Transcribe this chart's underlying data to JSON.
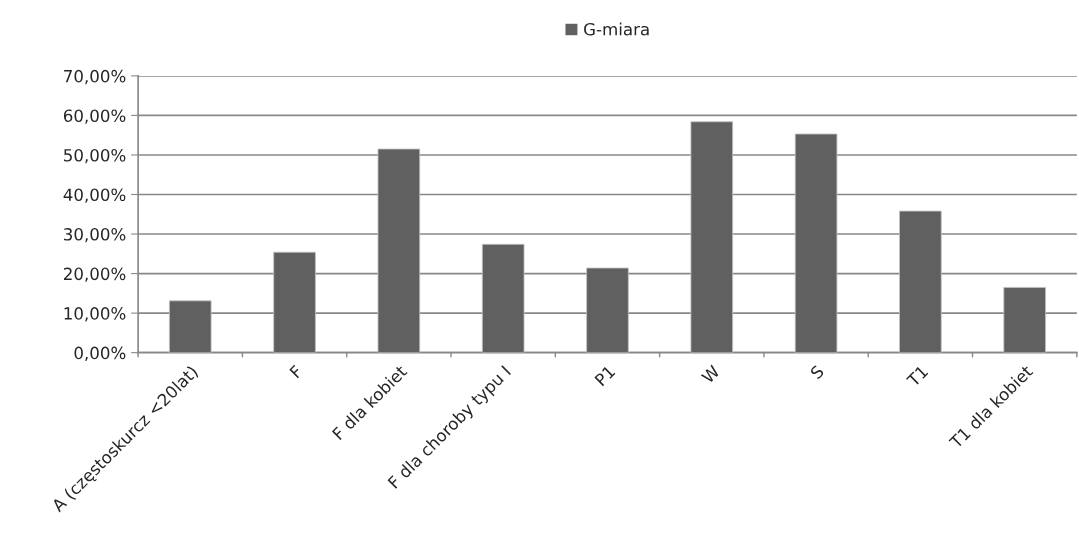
{
  "chart_data": {
    "type": "bar",
    "categories": [
      "A (częstoskurcz <20lat)",
      "F",
      "F dla kobiet",
      "F dla choroby typu I",
      "P1",
      "W",
      "S",
      "T1",
      "T1 dla kobiet"
    ],
    "series": [
      {
        "name": "G-miara",
        "color": "#606060",
        "values": [
          13.1,
          25.4,
          51.5,
          27.4,
          21.4,
          58.4,
          55.3,
          35.8,
          16.5
        ]
      }
    ],
    "ylim": [
      0,
      70
    ],
    "yticks": [
      {
        "value": 0,
        "label": "0,00%"
      },
      {
        "value": 10,
        "label": "10,00%"
      },
      {
        "value": 20,
        "label": "20,00%"
      },
      {
        "value": 30,
        "label": "30,00%"
      },
      {
        "value": 40,
        "label": "40,00%"
      },
      {
        "value": 50,
        "label": "50,00%"
      },
      {
        "value": 60,
        "label": "60,00%"
      },
      {
        "value": 70,
        "label": "70,00%"
      }
    ],
    "grid": "y",
    "legend": "top"
  }
}
